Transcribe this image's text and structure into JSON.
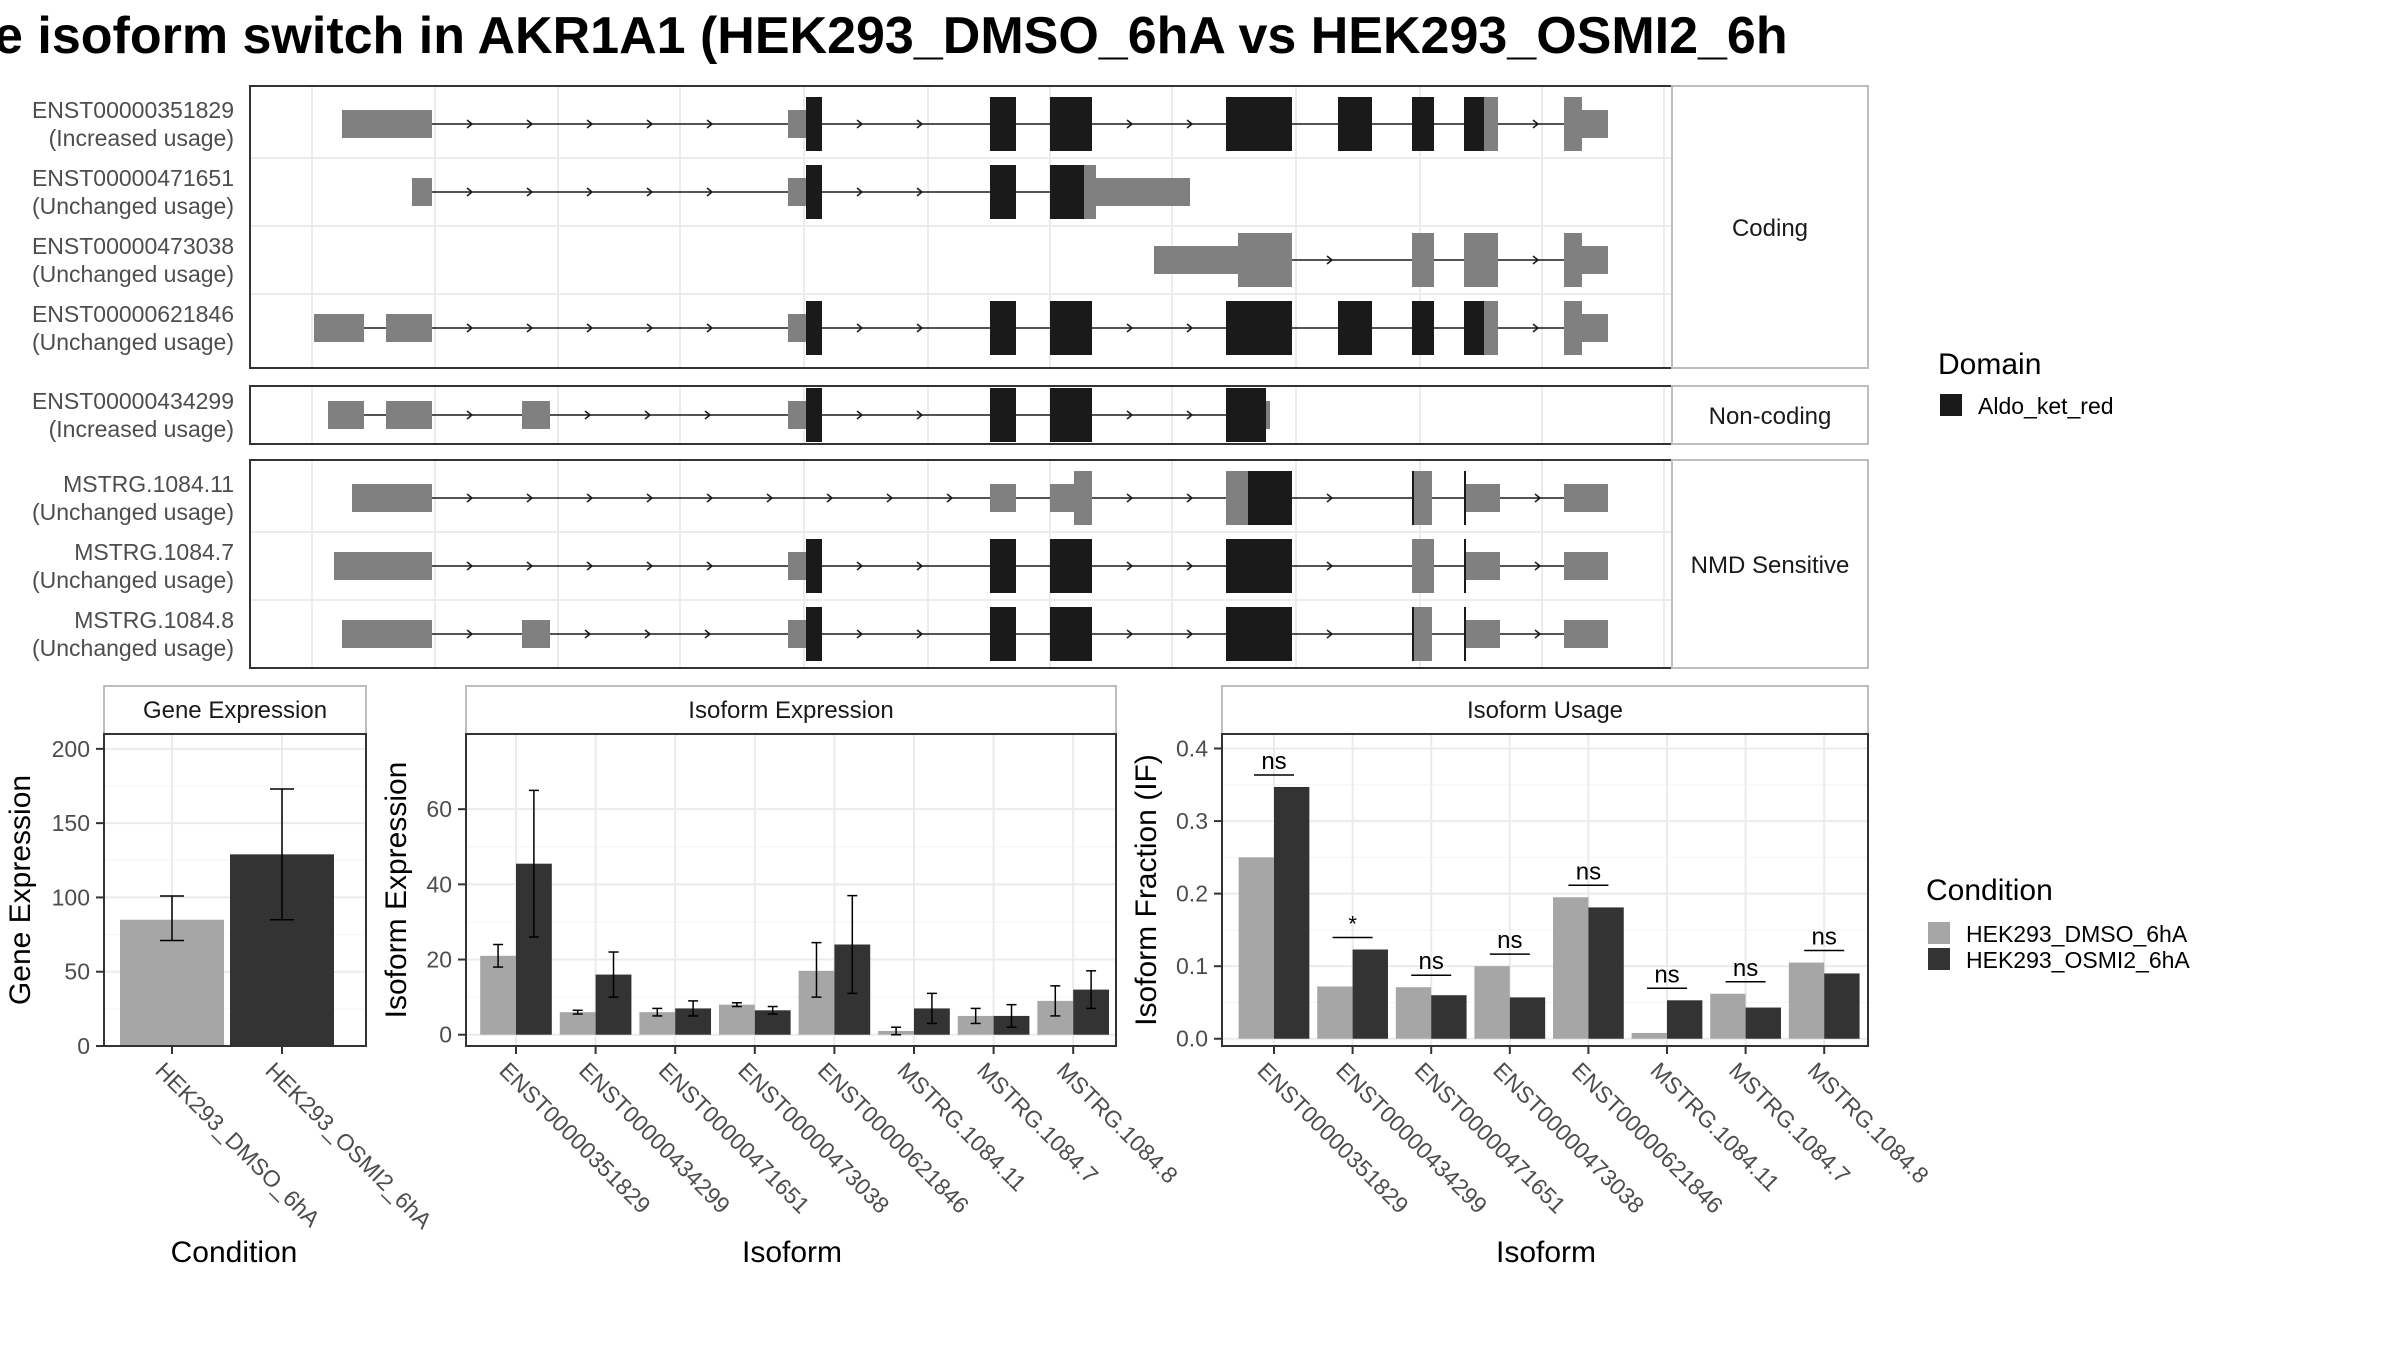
{
  "title": "e isoform switch in AKR1A1 (HEK293_DMSO_6hA vs HEK293_OSMI2_6h",
  "structure": {
    "groups": [
      {
        "label": "Coding",
        "isoforms": [
          {
            "id": "ENST00000351829",
            "usage": "(Increased usage)"
          },
          {
            "id": "ENST00000471651",
            "usage": "(Unchanged usage)"
          },
          {
            "id": "ENST00000473038",
            "usage": "(Unchanged usage)"
          },
          {
            "id": "ENST00000621846",
            "usage": "(Unchanged usage)"
          }
        ]
      },
      {
        "label": "Non-coding",
        "isoforms": [
          {
            "id": "ENST00000434299",
            "usage": "(Increased usage)"
          }
        ]
      },
      {
        "label": "NMD Sensitive",
        "isoforms": [
          {
            "id": "MSTRG.1084.11",
            "usage": "(Unchanged usage)"
          },
          {
            "id": "MSTRG.1084.7",
            "usage": "(Unchanged usage)"
          },
          {
            "id": "MSTRG.1084.8",
            "usage": "(Unchanged usage)"
          }
        ]
      }
    ],
    "legend": {
      "title": "Domain",
      "item": "Aldo_ket_red",
      "color": "#1a1a1a"
    },
    "utr_color": "#808080",
    "cds_color": "#1a1a1a"
  },
  "chart_data": [
    {
      "type": "bar",
      "title": "Gene Expression",
      "xlabel": "Condition",
      "ylabel": "Gene Expression",
      "categories": [
        "HEK293_DMSO_6hA",
        "HEK293_OSMI2_6hA"
      ],
      "values": [
        85,
        129
      ],
      "error": [
        [
          71,
          101
        ],
        [
          85,
          173
        ]
      ],
      "ylim": [
        0,
        210
      ],
      "yticks": [
        0,
        50,
        100,
        150,
        200
      ]
    },
    {
      "type": "bar",
      "title": "Isoform Expression",
      "xlabel": "Isoform",
      "ylabel": "Isoform Expression",
      "categories": [
        "ENST00000351829",
        "ENST00000434299",
        "ENST00000471651",
        "ENST00000473038",
        "ENST00000621846",
        "MSTRG.1084.11",
        "MSTRG.1084.7",
        "MSTRG.1084.8"
      ],
      "series": [
        {
          "name": "HEK293_DMSO_6hA",
          "values": [
            21,
            6,
            6,
            8,
            17,
            1,
            5,
            9
          ],
          "error": [
            [
              18,
              24
            ],
            [
              5.5,
              6.5
            ],
            [
              5,
              7
            ],
            [
              7.5,
              8.5
            ],
            [
              10,
              24.5
            ],
            [
              0,
              2
            ],
            [
              3,
              7
            ],
            [
              5,
              13
            ]
          ]
        },
        {
          "name": "HEK293_OSMI2_6hA",
          "values": [
            45.5,
            16,
            7,
            6.5,
            24,
            7,
            5,
            12
          ],
          "error": [
            [
              26,
              65
            ],
            [
              10,
              22
            ],
            [
              5,
              9
            ],
            [
              5.5,
              7.5
            ],
            [
              11,
              37
            ],
            [
              3,
              11
            ],
            [
              2,
              8
            ],
            [
              7,
              17
            ]
          ]
        }
      ],
      "ylim": [
        -3,
        80
      ],
      "yticks": [
        0,
        20,
        40,
        60
      ]
    },
    {
      "type": "bar",
      "title": "Isoform Usage",
      "xlabel": "Isoform",
      "ylabel": "Isoform Fraction (IF)",
      "categories": [
        "ENST00000351829",
        "ENST00000434299",
        "ENST00000471651",
        "ENST00000473038",
        "ENST00000621846",
        "MSTRG.1084.11",
        "MSTRG.1084.7",
        "MSTRG.1084.8"
      ],
      "series": [
        {
          "name": "HEK293_DMSO_6hA",
          "values": [
            0.25,
            0.072,
            0.071,
            0.1,
            0.195,
            0.008,
            0.062,
            0.105
          ]
        },
        {
          "name": "HEK293_OSMI2_6hA",
          "values": [
            0.347,
            0.123,
            0.06,
            0.057,
            0.181,
            0.053,
            0.043,
            0.09
          ]
        }
      ],
      "significance": [
        "ns",
        "*",
        "ns",
        "ns",
        "ns",
        "ns",
        "ns",
        "ns"
      ],
      "ylim": [
        -0.01,
        0.42
      ],
      "yticks": [
        0.0,
        0.1,
        0.2,
        0.3,
        0.4
      ],
      "ytick_labels": [
        "0.0",
        "0.1",
        "0.2",
        "0.3",
        "0.4"
      ]
    }
  ],
  "condition_legend": {
    "title": "Condition",
    "items": [
      {
        "name": "HEK293_DMSO_6hA",
        "color": "#a6a6a6"
      },
      {
        "name": "HEK293_OSMI2_6hA",
        "color": "#333333"
      }
    ]
  }
}
